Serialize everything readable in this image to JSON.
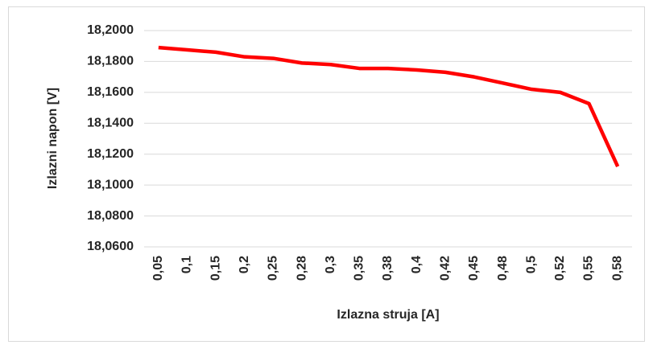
{
  "chart_data": {
    "type": "line",
    "xlabel": "Izlazna struja [A]",
    "ylabel": "Izlazni napon [V]",
    "categories": [
      "0,05",
      "0,1",
      "0,15",
      "0,2",
      "0,25",
      "0,28",
      "0,3",
      "0,35",
      "0,38",
      "0,4",
      "0,42",
      "0,45",
      "0,48",
      "0,5",
      "0,52",
      "0,55",
      "0,58"
    ],
    "series": [
      {
        "name": "Izlazni napon",
        "color": "#ff0000",
        "values": [
          18.189,
          18.1875,
          18.186,
          18.183,
          18.182,
          18.179,
          18.178,
          18.1755,
          18.1755,
          18.1745,
          18.173,
          18.17,
          18.166,
          18.162,
          18.16,
          18.1527,
          18.112
        ]
      }
    ],
    "ylim": [
      18.06,
      18.2
    ],
    "yticks": [
      {
        "value": 18.06,
        "label": "18,0600"
      },
      {
        "value": 18.08,
        "label": "18,0800"
      },
      {
        "value": 18.1,
        "label": "18,1000"
      },
      {
        "value": 18.12,
        "label": "18,1200"
      },
      {
        "value": 18.14,
        "label": "18,1400"
      },
      {
        "value": 18.16,
        "label": "18,1600"
      },
      {
        "value": 18.18,
        "label": "18,1800"
      },
      {
        "value": 18.2,
        "label": "18,2000"
      }
    ],
    "grid": true
  }
}
